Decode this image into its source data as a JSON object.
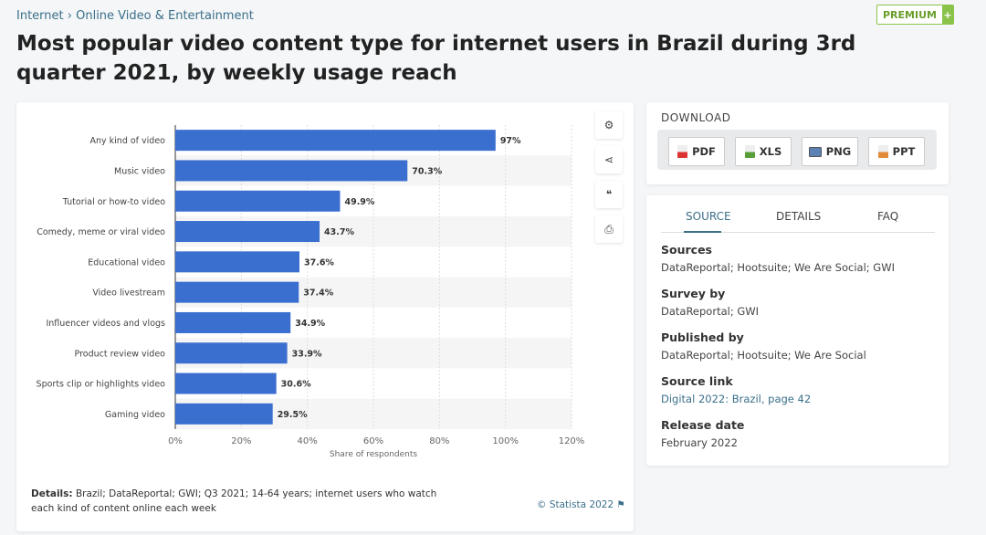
{
  "breadcrumb": {
    "items": [
      "Internet",
      "Online Video & Entertainment"
    ],
    "separator": "›"
  },
  "premium": {
    "label": "PREMIUM",
    "plus": "+"
  },
  "title": "Most popular video content type for internet users in Brazil during 3rd quarter 2021, by weekly usage reach",
  "tools": [
    "gear-icon",
    "share-icon",
    "quote-icon",
    "print-icon"
  ],
  "tool_glyphs": {
    "gear": "⚙",
    "share": "⋖",
    "quote": "❝",
    "print": "⎙"
  },
  "details": {
    "label": "Details:",
    "text": "Brazil; DataReportal; GWI; Q3 2021; 14-64 years; internet users who watch each kind of content online each week"
  },
  "copyright": "© Statista 2022",
  "download": {
    "title": "DOWNLOAD",
    "buttons": [
      "PDF",
      "XLS",
      "PNG",
      "PPT"
    ]
  },
  "source_panel": {
    "tabs": [
      "SOURCE",
      "DETAILS",
      "FAQ"
    ],
    "fields": [
      {
        "label": "Sources",
        "value": "DataReportal; Hootsuite; We Are Social; GWI"
      },
      {
        "label": "Survey by",
        "value": "DataReportal; GWI"
      },
      {
        "label": "Published by",
        "value": "DataReportal; Hootsuite; We Are Social"
      },
      {
        "label": "Source link",
        "value": "Digital 2022: Brazil, page 42"
      },
      {
        "label": "Release date",
        "value": "February 2022"
      }
    ]
  },
  "colors": {
    "bar": "#3a6fd0",
    "accent": "#3b6f8a",
    "premium": "#8bc34a"
  },
  "chart_data": {
    "type": "bar",
    "orientation": "horizontal",
    "categories": [
      "Any kind of video",
      "Music video",
      "Tutorial or how-to video",
      "Comedy, meme or viral video",
      "Educational video",
      "Video livestream",
      "Influencer videos and vlogs",
      "Product review video",
      "Sports clip or highlights video",
      "Gaming video"
    ],
    "values": [
      97,
      70.3,
      49.9,
      43.7,
      37.6,
      37.4,
      34.9,
      33.9,
      30.6,
      29.5
    ],
    "value_labels": [
      "97%",
      "70.3%",
      "49.9%",
      "43.7%",
      "37.6%",
      "37.4%",
      "34.9%",
      "33.9%",
      "30.6%",
      "29.5%"
    ],
    "xlabel": "Share of respondents",
    "xlim": [
      0,
      120
    ],
    "xticks": [
      "0%",
      "20%",
      "40%",
      "60%",
      "80%",
      "100%",
      "120%"
    ],
    "grid": true
  }
}
